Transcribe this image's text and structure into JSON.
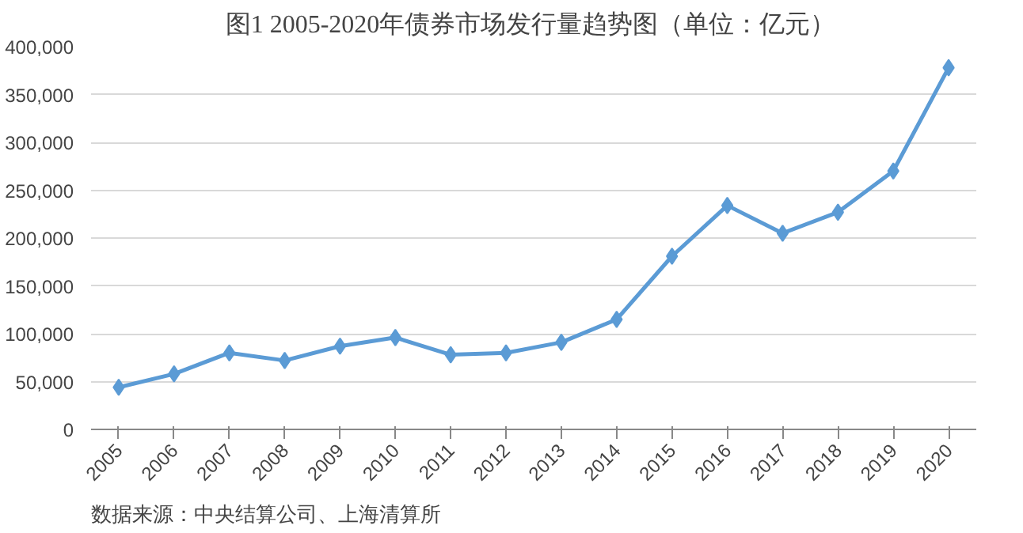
{
  "chart_data": {
    "type": "line",
    "title": "图1  2005-2020年债券市场发行量趋势图（单位：亿元）",
    "categories": [
      "2005",
      "2006",
      "2007",
      "2008",
      "2009",
      "2010",
      "2011",
      "2012",
      "2013",
      "2014",
      "2015",
      "2016",
      "2017",
      "2018",
      "2019",
      "2020"
    ],
    "series": [
      {
        "color": "#5b9bd5",
        "values": [
          44000,
          58000,
          80000,
          72000,
          87000,
          96000,
          78000,
          80000,
          91000,
          115000,
          181000,
          234000,
          205000,
          227000,
          270000,
          378000
        ]
      }
    ],
    "ylim": [
      0,
      400000
    ],
    "yticks": [
      {
        "value": 0,
        "label": "0"
      },
      {
        "value": 50000,
        "label": "50,000"
      },
      {
        "value": 100000,
        "label": "100,000"
      },
      {
        "value": 150000,
        "label": "150,000"
      },
      {
        "value": 200000,
        "label": "200,000"
      },
      {
        "value": 250000,
        "label": "250,000"
      },
      {
        "value": 300000,
        "label": "300,000"
      },
      {
        "value": 350000,
        "label": "350,000"
      },
      {
        "value": 400000,
        "label": "400,000"
      }
    ],
    "grid": "y",
    "marker": "diamond",
    "line_style": "solid",
    "annotations": [
      "数据来源：中央结算公司、上海清算所"
    ]
  }
}
